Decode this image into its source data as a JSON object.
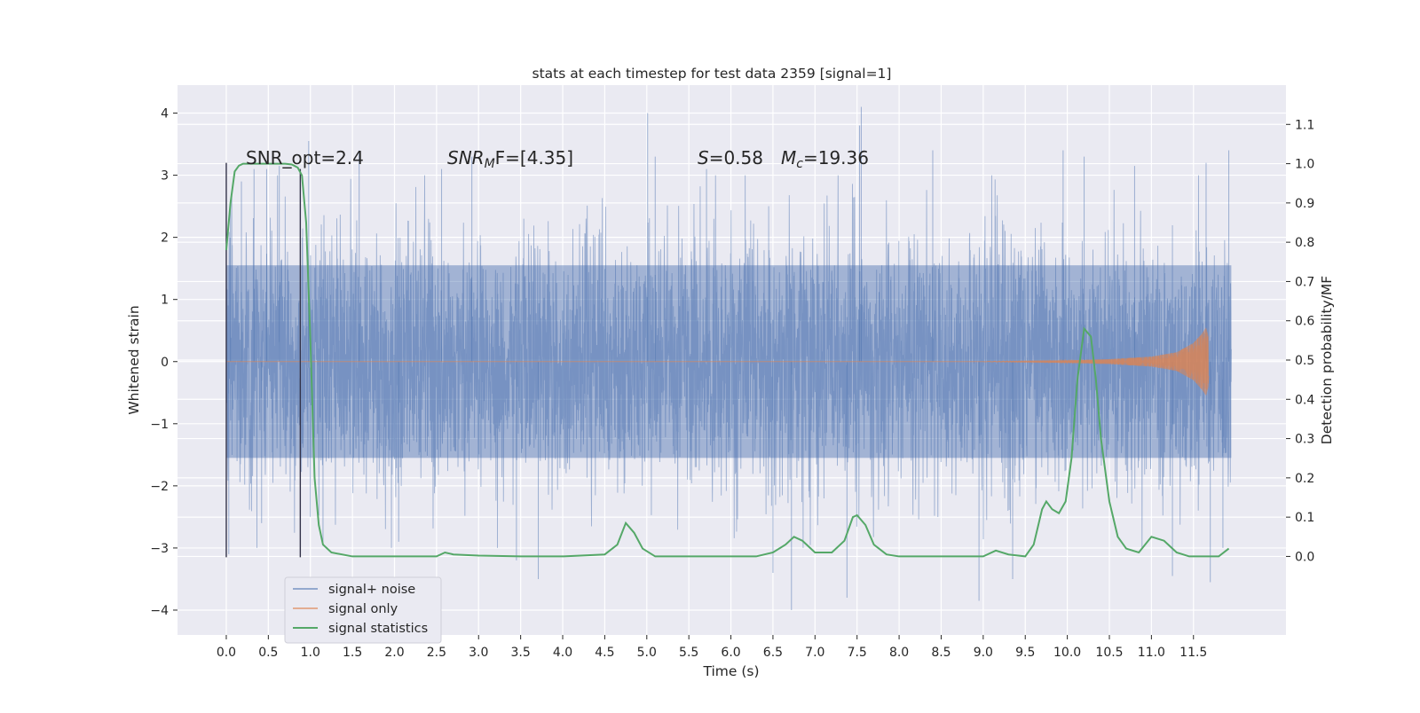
{
  "chart_data": {
    "type": "line",
    "title": "stats at each timestep for test data 2359 [signal=1]",
    "xlabel": "Time (s)",
    "ylabel_left": "Whitened strain",
    "ylabel_right": "Detection probability/MF",
    "xlim": [
      -0.58,
      12.6
    ],
    "ylim_left": [
      -4.4,
      4.45
    ],
    "ylim_right": [
      -0.2,
      1.2
    ],
    "x_ticks": [
      0.0,
      0.5,
      1.0,
      1.5,
      2.0,
      2.5,
      3.0,
      3.5,
      4.0,
      4.5,
      5.0,
      5.5,
      6.0,
      6.5,
      7.0,
      7.5,
      8.0,
      8.5,
      9.0,
      9.5,
      10.0,
      10.5,
      11.0,
      11.5
    ],
    "x_tick_labels": [
      "0.0",
      "0.5",
      "1.0",
      "1.5",
      "2.0",
      "2.5",
      "3.0",
      "3.5",
      "4.0",
      "4.5",
      "5.0",
      "5.5",
      "6.0",
      "6.5",
      "7.0",
      "7.5",
      "8.0",
      "8.5",
      "9.0",
      "9.5",
      "10.0",
      "10.5",
      "11.0",
      "11.5"
    ],
    "y_left_ticks": [
      4,
      3,
      2,
      1,
      0,
      -1,
      -2,
      -3,
      -4
    ],
    "y_left_tick_labels": [
      "4",
      "3",
      "2",
      "1",
      "0",
      "−1",
      "−2",
      "−3",
      "−4"
    ],
    "y_right_ticks": [
      1.1,
      1.0,
      0.9,
      0.8,
      0.7,
      0.6,
      0.5,
      0.4,
      0.3,
      0.2,
      0.1,
      0.0
    ],
    "y_right_tick_labels": [
      "1.1",
      "1.0",
      "0.9",
      "0.8",
      "0.7",
      "0.6",
      "0.5",
      "0.4",
      "0.3",
      "0.2",
      "0.1",
      "0.0"
    ],
    "annotations": {
      "snr_opt": "SNR_opt=2.4",
      "snr_mf_main": "SNR",
      "snr_mf_sub": "M",
      "snr_mf_tail": "F=[4.35]",
      "s_main": "S",
      "s_tail": "=0.58",
      "mc_main": "M",
      "mc_sub": "c",
      "mc_tail": "=19.36"
    },
    "vlines": [
      {
        "x": 0.0,
        "y_bottom": -3.15,
        "y_top": 3.2
      },
      {
        "x": 0.88,
        "y_bottom": -3.15,
        "y_top": 3.1
      }
    ],
    "series": [
      {
        "name": "signal+ noise",
        "color": "#4c72b0",
        "description": "whitened strain noise, x from 0.0 to 11.95 s",
        "x_range": [
          0.0,
          11.95
        ],
        "spikes_max": [
          {
            "x": 0.05,
            "v": 2.6
          },
          {
            "x": 0.18,
            "v": 2.9
          },
          {
            "x": 0.33,
            "v": 3.1
          },
          {
            "x": 0.48,
            "v": 3.1
          },
          {
            "x": 0.63,
            "v": 3.15
          },
          {
            "x": 0.98,
            "v": 3.55
          },
          {
            "x": 1.58,
            "v": 3.4
          },
          {
            "x": 2.56,
            "v": 3.1
          },
          {
            "x": 2.92,
            "v": 3.3
          },
          {
            "x": 5.1,
            "v": 3.3
          },
          {
            "x": 5.01,
            "v": 4.0
          },
          {
            "x": 5.71,
            "v": 3.1
          },
          {
            "x": 7.55,
            "v": 4.1
          },
          {
            "x": 7.53,
            "v": 3.8
          },
          {
            "x": 8.4,
            "v": 3.4
          },
          {
            "x": 9.95,
            "v": 3.4
          },
          {
            "x": 10.2,
            "v": 3.3
          },
          {
            "x": 10.8,
            "v": 3.15
          },
          {
            "x": 11.65,
            "v": 3.2
          },
          {
            "x": 11.92,
            "v": 3.4
          }
        ],
        "spikes_min": [
          {
            "x": 0.03,
            "v": -3.1
          },
          {
            "x": 0.42,
            "v": -2.6
          },
          {
            "x": 1.15,
            "v": -2.9
          },
          {
            "x": 2.05,
            "v": -2.9
          },
          {
            "x": 3.45,
            "v": -3.2
          },
          {
            "x": 3.71,
            "v": -3.5
          },
          {
            "x": 6.5,
            "v": -3.4
          },
          {
            "x": 6.72,
            "v": -4.0
          },
          {
            "x": 7.38,
            "v": -3.8
          },
          {
            "x": 8.95,
            "v": -3.85
          },
          {
            "x": 9.35,
            "v": -3.5
          },
          {
            "x": 11.25,
            "v": -3.45
          },
          {
            "x": 11.7,
            "v": -3.55
          },
          {
            "x": 11.85,
            "v": -3.0
          }
        ]
      },
      {
        "name": "signal only",
        "color": "#dd8452",
        "description": "chirp signal growing towards 11.65 s",
        "chirp_points": [
          {
            "x": 9.0,
            "amp": 0.004
          },
          {
            "x": 10.0,
            "amp": 0.02
          },
          {
            "x": 10.5,
            "amp": 0.04
          },
          {
            "x": 11.0,
            "amp": 0.08
          },
          {
            "x": 11.3,
            "amp": 0.15
          },
          {
            "x": 11.5,
            "amp": 0.3
          },
          {
            "x": 11.6,
            "amp": 0.45
          },
          {
            "x": 11.65,
            "amp": 0.55
          },
          {
            "x": 11.68,
            "amp": 0.4
          }
        ]
      },
      {
        "name": "signal statistics",
        "color": "#55a868",
        "axis": "right",
        "x": [
          0.0,
          0.05,
          0.1,
          0.15,
          0.2,
          0.25,
          0.3,
          0.4,
          0.5,
          0.6,
          0.7,
          0.78,
          0.85,
          0.9,
          0.95,
          1.0,
          1.05,
          1.1,
          1.15,
          1.25,
          1.5,
          2.0,
          2.5,
          2.6,
          2.7,
          3.0,
          3.5,
          4.0,
          4.5,
          4.65,
          4.75,
          4.85,
          4.95,
          5.1,
          5.3,
          5.5,
          6.0,
          6.3,
          6.5,
          6.65,
          6.75,
          6.85,
          7.0,
          7.2,
          7.35,
          7.45,
          7.5,
          7.6,
          7.7,
          7.85,
          8.0,
          8.5,
          9.0,
          9.15,
          9.3,
          9.5,
          9.6,
          9.7,
          9.75,
          9.82,
          9.9,
          9.98,
          10.05,
          10.12,
          10.2,
          10.28,
          10.34,
          10.4,
          10.5,
          10.6,
          10.7,
          10.85,
          11.0,
          11.15,
          11.3,
          11.45,
          11.6,
          11.8,
          11.92
        ],
        "y": [
          0.78,
          0.9,
          0.98,
          0.995,
          1.0,
          1.0,
          1.0,
          1.0,
          1.0,
          1.0,
          1.0,
          0.998,
          0.99,
          0.97,
          0.85,
          0.55,
          0.2,
          0.08,
          0.03,
          0.01,
          0.0,
          0.0,
          0.0,
          0.01,
          0.005,
          0.002,
          0.0,
          0.0,
          0.005,
          0.03,
          0.085,
          0.06,
          0.02,
          0.0,
          0.0,
          0.0,
          0.0,
          0.0,
          0.01,
          0.03,
          0.05,
          0.04,
          0.01,
          0.01,
          0.04,
          0.1,
          0.105,
          0.08,
          0.03,
          0.005,
          0.0,
          0.0,
          0.0,
          0.015,
          0.005,
          0.0,
          0.03,
          0.12,
          0.14,
          0.12,
          0.11,
          0.14,
          0.25,
          0.45,
          0.58,
          0.56,
          0.45,
          0.3,
          0.14,
          0.05,
          0.02,
          0.01,
          0.05,
          0.04,
          0.01,
          0.0,
          0.0,
          0.0,
          0.02
        ]
      }
    ],
    "legend": {
      "placement": "lower-left",
      "entries": [
        "signal+ noise",
        "signal only",
        "signal statistics"
      ]
    },
    "grid": true
  },
  "colors": {
    "axes_bg": "#eaeaf2",
    "grid": "#ffffff",
    "noise": "#4c72b0",
    "signal": "#dd8452",
    "stats": "#55a868",
    "vline": "#33334a"
  }
}
